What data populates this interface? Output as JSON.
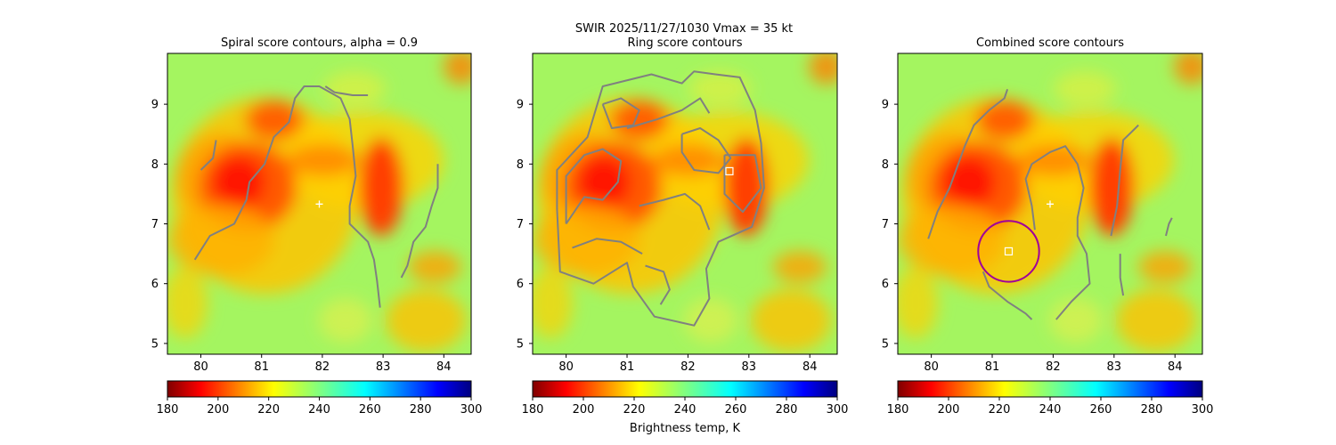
{
  "figure": {
    "suptitle_line1": "SWIR  2025/11/27/1030    Vmax = 35 kt",
    "colorbar_label": "Brightness temp, K"
  },
  "colors": {
    "contour": "#808080",
    "marker": "#ffffff",
    "circle": "#a0009a"
  },
  "chart_data": [
    {
      "type": "heatmap",
      "title": "Spiral score contours, alpha =  0.9",
      "xlim": [
        79.45,
        84.45
      ],
      "ylim": [
        4.82,
        9.85
      ],
      "xticks": [
        "80",
        "81",
        "82",
        "83",
        "84"
      ],
      "yticks": [
        "5",
        "6",
        "7",
        "8",
        "9"
      ],
      "colorbar": {
        "range": [
          180,
          300
        ],
        "ticks": [
          "180",
          "200",
          "220",
          "240",
          "260",
          "280",
          "300"
        ]
      },
      "markers": [
        {
          "kind": "plus",
          "x": 81.95,
          "y": 7.33
        }
      ],
      "contours": [
        [
          [
            79.9,
            6.4
          ],
          [
            80.15,
            6.8
          ],
          [
            80.55,
            7.0
          ],
          [
            80.75,
            7.4
          ],
          [
            80.8,
            7.7
          ],
          [
            81.05,
            8.0
          ],
          [
            81.2,
            8.45
          ],
          [
            81.45,
            8.7
          ],
          [
            81.55,
            9.1
          ],
          [
            81.7,
            9.3
          ],
          [
            81.95,
            9.3
          ],
          [
            82.3,
            9.1
          ],
          [
            82.45,
            8.75
          ],
          [
            82.5,
            8.3
          ],
          [
            82.55,
            7.8
          ],
          [
            82.45,
            7.3
          ],
          [
            82.45,
            7.0
          ],
          [
            82.75,
            6.7
          ],
          [
            82.85,
            6.4
          ],
          [
            82.9,
            6.05
          ],
          [
            82.95,
            5.6
          ]
        ],
        [
          [
            80.0,
            7.9
          ],
          [
            80.2,
            8.1
          ],
          [
            80.25,
            8.4
          ]
        ],
        [
          [
            82.05,
            9.3
          ],
          [
            82.2,
            9.2
          ],
          [
            82.5,
            9.15
          ],
          [
            82.75,
            9.15
          ]
        ],
        [
          [
            83.3,
            6.1
          ],
          [
            83.4,
            6.3
          ],
          [
            83.5,
            6.7
          ],
          [
            83.7,
            6.95
          ],
          [
            83.8,
            7.3
          ],
          [
            83.9,
            7.6
          ],
          [
            83.9,
            8.0
          ]
        ]
      ]
    },
    {
      "type": "heatmap",
      "title": "Ring score contours",
      "xlim": [
        79.45,
        84.45
      ],
      "ylim": [
        4.82,
        9.85
      ],
      "xticks": [
        "80",
        "81",
        "82",
        "83",
        "84"
      ],
      "yticks": [
        "5",
        "6",
        "7",
        "8",
        "9"
      ],
      "colorbar": {
        "range": [
          180,
          300
        ],
        "ticks": [
          "180",
          "200",
          "220",
          "240",
          "260",
          "280",
          "300"
        ]
      },
      "markers": [
        {
          "kind": "square",
          "x": 82.68,
          "y": 7.88
        }
      ],
      "contours": [
        [
          [
            80.0,
            7.0
          ],
          [
            80.3,
            7.45
          ],
          [
            80.6,
            7.4
          ],
          [
            80.85,
            7.7
          ],
          [
            80.9,
            8.05
          ],
          [
            80.6,
            8.25
          ],
          [
            80.3,
            8.15
          ],
          [
            80.0,
            7.8
          ],
          [
            80.0,
            7.0
          ]
        ],
        [
          [
            80.6,
            9.0
          ],
          [
            80.9,
            9.1
          ],
          [
            81.2,
            8.9
          ],
          [
            81.1,
            8.65
          ],
          [
            80.75,
            8.6
          ],
          [
            80.6,
            9.0
          ]
        ],
        [
          [
            81.9,
            8.5
          ],
          [
            82.2,
            8.6
          ],
          [
            82.5,
            8.4
          ],
          [
            82.7,
            8.1
          ],
          [
            82.5,
            7.85
          ],
          [
            82.1,
            7.9
          ],
          [
            81.9,
            8.2
          ],
          [
            81.9,
            8.5
          ]
        ],
        [
          [
            82.6,
            8.15
          ],
          [
            83.1,
            8.15
          ],
          [
            83.2,
            7.6
          ],
          [
            82.9,
            7.2
          ],
          [
            82.6,
            7.5
          ],
          [
            82.6,
            8.15
          ]
        ],
        [
          [
            79.85,
            7.25
          ],
          [
            79.85,
            7.9
          ],
          [
            80.35,
            8.45
          ],
          [
            80.6,
            9.3
          ],
          [
            81.4,
            9.5
          ],
          [
            81.9,
            9.35
          ],
          [
            82.1,
            9.55
          ],
          [
            82.45,
            9.5
          ],
          [
            82.85,
            9.45
          ],
          [
            83.1,
            8.9
          ],
          [
            83.2,
            8.35
          ],
          [
            83.25,
            7.6
          ],
          [
            83.05,
            6.95
          ],
          [
            82.5,
            6.7
          ],
          [
            82.3,
            6.25
          ],
          [
            82.35,
            5.75
          ],
          [
            82.1,
            5.3
          ],
          [
            81.45,
            5.45
          ],
          [
            81.1,
            5.95
          ],
          [
            81.0,
            6.35
          ],
          [
            80.45,
            6.0
          ],
          [
            79.9,
            6.2
          ],
          [
            79.85,
            7.25
          ]
        ],
        [
          [
            81.0,
            8.6
          ],
          [
            81.5,
            8.75
          ],
          [
            81.9,
            8.9
          ],
          [
            82.2,
            9.1
          ],
          [
            82.35,
            8.85
          ]
        ],
        [
          [
            81.2,
            7.3
          ],
          [
            81.6,
            7.4
          ],
          [
            81.95,
            7.5
          ],
          [
            82.2,
            7.3
          ],
          [
            82.35,
            6.9
          ]
        ],
        [
          [
            80.1,
            6.6
          ],
          [
            80.5,
            6.75
          ],
          [
            80.9,
            6.7
          ],
          [
            81.25,
            6.5
          ]
        ],
        [
          [
            81.3,
            6.3
          ],
          [
            81.6,
            6.2
          ],
          [
            81.7,
            5.9
          ],
          [
            81.55,
            5.65
          ]
        ]
      ]
    },
    {
      "type": "heatmap",
      "title": "Combined score contours",
      "xlim": [
        79.45,
        84.45
      ],
      "ylim": [
        4.82,
        9.85
      ],
      "xticks": [
        "80",
        "81",
        "82",
        "83",
        "84"
      ],
      "yticks": [
        "5",
        "6",
        "7",
        "8",
        "9"
      ],
      "colorbar": {
        "range": [
          180,
          300
        ],
        "ticks": [
          "180",
          "200",
          "220",
          "240",
          "260",
          "280",
          "300"
        ]
      },
      "markers": [
        {
          "kind": "plus",
          "x": 81.95,
          "y": 7.33
        },
        {
          "kind": "square",
          "x": 81.27,
          "y": 6.54
        },
        {
          "kind": "circle",
          "x": 81.27,
          "y": 6.54,
          "r": 0.5
        }
      ],
      "contours": [
        [
          [
            79.95,
            6.75
          ],
          [
            80.1,
            7.2
          ],
          [
            80.3,
            7.6
          ],
          [
            80.55,
            8.3
          ],
          [
            80.7,
            8.65
          ],
          [
            80.95,
            8.9
          ],
          [
            81.2,
            9.1
          ],
          [
            81.25,
            9.25
          ]
        ],
        [
          [
            80.85,
            6.2
          ],
          [
            80.95,
            5.95
          ],
          [
            81.25,
            5.7
          ],
          [
            81.55,
            5.5
          ],
          [
            81.65,
            5.4
          ]
        ],
        [
          [
            81.7,
            6.9
          ],
          [
            81.65,
            7.3
          ],
          [
            81.55,
            7.75
          ],
          [
            81.65,
            8.0
          ],
          [
            81.95,
            8.2
          ],
          [
            82.2,
            8.3
          ],
          [
            82.4,
            8.0
          ],
          [
            82.5,
            7.6
          ],
          [
            82.4,
            7.1
          ],
          [
            82.4,
            6.8
          ],
          [
            82.55,
            6.5
          ],
          [
            82.6,
            6.0
          ],
          [
            82.3,
            5.7
          ],
          [
            82.05,
            5.4
          ]
        ],
        [
          [
            82.95,
            6.8
          ],
          [
            83.05,
            7.3
          ],
          [
            83.1,
            7.9
          ],
          [
            83.15,
            8.4
          ],
          [
            83.35,
            8.6
          ],
          [
            83.4,
            8.65
          ]
        ],
        [
          [
            83.15,
            5.8
          ],
          [
            83.1,
            6.1
          ],
          [
            83.1,
            6.5
          ]
        ],
        [
          [
            83.85,
            6.8
          ],
          [
            83.9,
            7.0
          ],
          [
            83.95,
            7.1
          ]
        ]
      ]
    }
  ]
}
